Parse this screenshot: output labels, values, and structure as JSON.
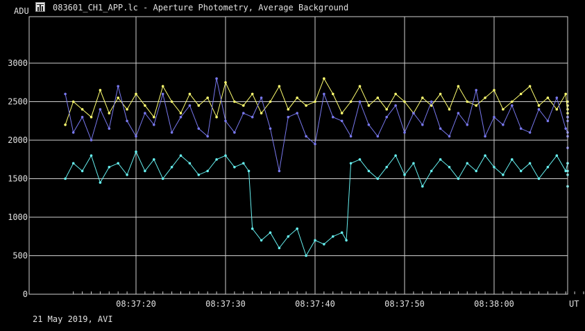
{
  "window": {
    "title": "083601_CH1_APP.lc - Aperture Photometry, Average Background"
  },
  "footer": {
    "date_text": "21 May 2019, AVI"
  },
  "colors": {
    "background": "#000000",
    "grid": "#d0d0d0",
    "axis_text": "#e0e0e0"
  },
  "chart_data": {
    "type": "line",
    "title": "083601_CH1_APP.lc - Aperture Photometry, Average Background",
    "ylabel": "ADU",
    "xlabel": "UT",
    "ylim": [
      0,
      3000
    ],
    "yticks": [
      0,
      500,
      1000,
      1500,
      2000,
      2500,
      3000
    ],
    "xticks": [
      "08:37:20",
      "08:37:30",
      "08:37:40",
      "08:37:50",
      "08:38:00"
    ],
    "xrange": [
      "08:37:12.1",
      "08:38:12.4"
    ],
    "grid": true,
    "series": [
      {
        "color": "#ffff70",
        "t": [
          12.1,
          13.0,
          14.0,
          15.0,
          16.0,
          17.0,
          18.0,
          19.0,
          20.0,
          21.0,
          22.0,
          23.0,
          24.0,
          25.0,
          26.0,
          27.0,
          28.0,
          29.0,
          30.0,
          31.0,
          32.0,
          33.0,
          34.0,
          35.0,
          36.0,
          37.0,
          38.0,
          39.0,
          40.0,
          41.0,
          42.0,
          43.0,
          44.0,
          45.0,
          46.0,
          47.0,
          48.0,
          49.0,
          50.0,
          51.0,
          52.0,
          53.0,
          54.0,
          55.0,
          56.0,
          57.0,
          58.0,
          59.0,
          60.0,
          61.0,
          62.0,
          63.0,
          64.0,
          65.0,
          66.0,
          67.0,
          68.0,
          69.0,
          70.0,
          71.0,
          72.0,
          72.4
        ],
        "values": [
          2200,
          2500,
          2400,
          2300,
          2650,
          2350,
          2550,
          2400,
          2600,
          2450,
          2300,
          2700,
          2500,
          2350,
          2600,
          2450,
          2550,
          2300,
          2750,
          2500,
          2450,
          2600,
          2350,
          2500,
          2700,
          2400,
          2550,
          2450,
          2500,
          2800,
          2600,
          2350,
          2500,
          2700,
          2450,
          2550,
          2400,
          2600,
          2500,
          2350,
          2550,
          2450,
          2600,
          2400,
          2700,
          2500,
          2450,
          2550,
          2650,
          2400,
          2500,
          2600,
          2700,
          2450,
          2550,
          2400,
          2600,
          2350,
          2500,
          2450,
          2300,
          2400
        ]
      },
      {
        "color": "#7878ee",
        "t": [
          12.1,
          13.0,
          14.0,
          15.0,
          16.0,
          17.0,
          18.0,
          19.0,
          20.0,
          21.0,
          22.0,
          23.0,
          24.0,
          25.0,
          26.0,
          27.0,
          28.0,
          29.0,
          30.0,
          31.0,
          32.0,
          33.0,
          34.0,
          35.0,
          36.0,
          37.0,
          38.0,
          39.0,
          40.0,
          41.0,
          42.0,
          43.0,
          44.0,
          45.0,
          46.0,
          47.0,
          48.0,
          49.0,
          50.0,
          51.0,
          52.0,
          53.0,
          54.0,
          55.0,
          56.0,
          57.0,
          58.0,
          59.0,
          60.0,
          61.0,
          62.0,
          63.0,
          64.0,
          65.0,
          66.0,
          67.0,
          68.0,
          69.0,
          70.0,
          71.0,
          72.0,
          72.4
        ],
        "values": [
          2600,
          2100,
          2300,
          2000,
          2400,
          2150,
          2700,
          2250,
          2050,
          2350,
          2200,
          2600,
          2100,
          2300,
          2450,
          2150,
          2050,
          2800,
          2250,
          2100,
          2350,
          2300,
          2550,
          2150,
          1600,
          2300,
          2350,
          2050,
          1950,
          2600,
          2300,
          2250,
          2050,
          2500,
          2200,
          2050,
          2300,
          2450,
          2100,
          2350,
          2200,
          2500,
          2150,
          2050,
          2350,
          2200,
          2650,
          2050,
          2300,
          2200,
          2450,
          2150,
          2100,
          2400,
          2250,
          2550,
          2150,
          2100,
          2250,
          2300,
          2050,
          1900
        ]
      },
      {
        "color": "#66f0f0",
        "t": [
          12.1,
          13.0,
          14.0,
          15.0,
          16.0,
          17.0,
          18.0,
          19.0,
          20.0,
          21.0,
          22.0,
          23.0,
          24.0,
          25.0,
          26.0,
          27.0,
          28.0,
          29.0,
          30.0,
          31.0,
          32.0,
          32.6,
          33.0,
          34.0,
          35.0,
          36.0,
          37.0,
          38.0,
          39.0,
          40.0,
          41.0,
          42.0,
          43.0,
          43.5,
          44.0,
          45.0,
          46.0,
          47.0,
          48.0,
          49.0,
          50.0,
          51.0,
          52.0,
          53.0,
          54.0,
          55.0,
          56.0,
          57.0,
          58.0,
          59.0,
          60.0,
          61.0,
          62.0,
          63.0,
          64.0,
          65.0,
          66.0,
          67.0,
          68.0,
          69.0,
          70.0,
          71.0,
          72.0,
          72.4
        ],
        "values": [
          1500,
          1700,
          1600,
          1800,
          1450,
          1650,
          1700,
          1550,
          1850,
          1600,
          1750,
          1500,
          1650,
          1800,
          1700,
          1550,
          1600,
          1750,
          1800,
          1650,
          1700,
          1600,
          850,
          700,
          800,
          600,
          750,
          850,
          500,
          700,
          650,
          750,
          800,
          700,
          1700,
          1750,
          1600,
          1500,
          1650,
          1800,
          1550,
          1700,
          1400,
          1600,
          1750,
          1650,
          1500,
          1700,
          1600,
          1800,
          1650,
          1550,
          1750,
          1600,
          1700,
          1500,
          1650,
          1800,
          1600,
          1700,
          1550,
          1400,
          1600,
          1700
        ]
      }
    ]
  }
}
